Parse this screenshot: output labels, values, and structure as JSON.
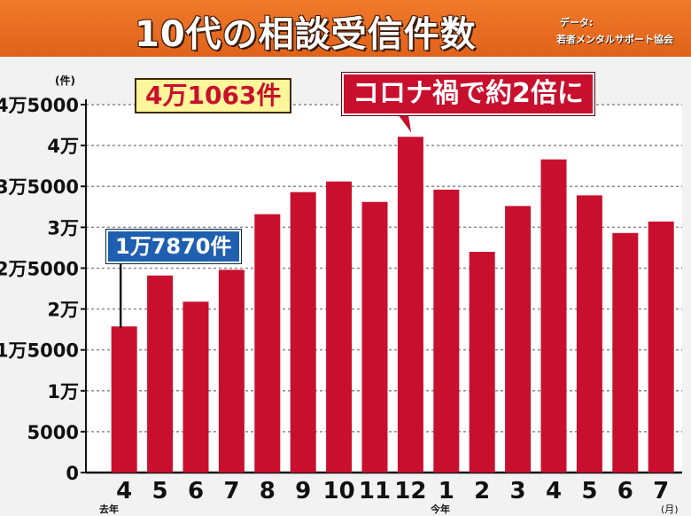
{
  "header": {
    "title": "10代の相談受信件数",
    "source_label": "データ:",
    "source_org": "若者メンタルサポート協会"
  },
  "colors": {
    "header": "#e8681f",
    "bar": "#c8102e",
    "callout_blue": "#1f5fb0",
    "callout_yellow": "#fff59a"
  },
  "chart_data": {
    "type": "bar",
    "categories": [
      "4",
      "5",
      "6",
      "7",
      "8",
      "9",
      "10",
      "11",
      "12",
      "1",
      "2",
      "3",
      "4",
      "5",
      "6",
      "7"
    ],
    "values": [
      17870,
      24100,
      20900,
      24800,
      31600,
      34300,
      35600,
      33100,
      41063,
      34600,
      27000,
      32600,
      38300,
      33900,
      29300,
      30700
    ],
    "ylim": [
      0,
      45000
    ],
    "yticks": [
      0,
      5000,
      10000,
      15000,
      20000,
      25000,
      30000,
      35000,
      40000,
      45000
    ],
    "ytick_labels": [
      "0",
      "5000",
      "1万",
      "1万5000",
      "2万",
      "2万5000",
      "3万",
      "3万5000",
      "4万",
      "4万5000"
    ],
    "ylabel": "(件)",
    "xlabel": "(月)",
    "year_notes": [
      "去年",
      "今年"
    ],
    "grid": true,
    "annotations": {
      "peak_value": "4万1063件",
      "peak_text": "コロナ禍で約2倍に",
      "start_value": "1万7870件"
    }
  }
}
